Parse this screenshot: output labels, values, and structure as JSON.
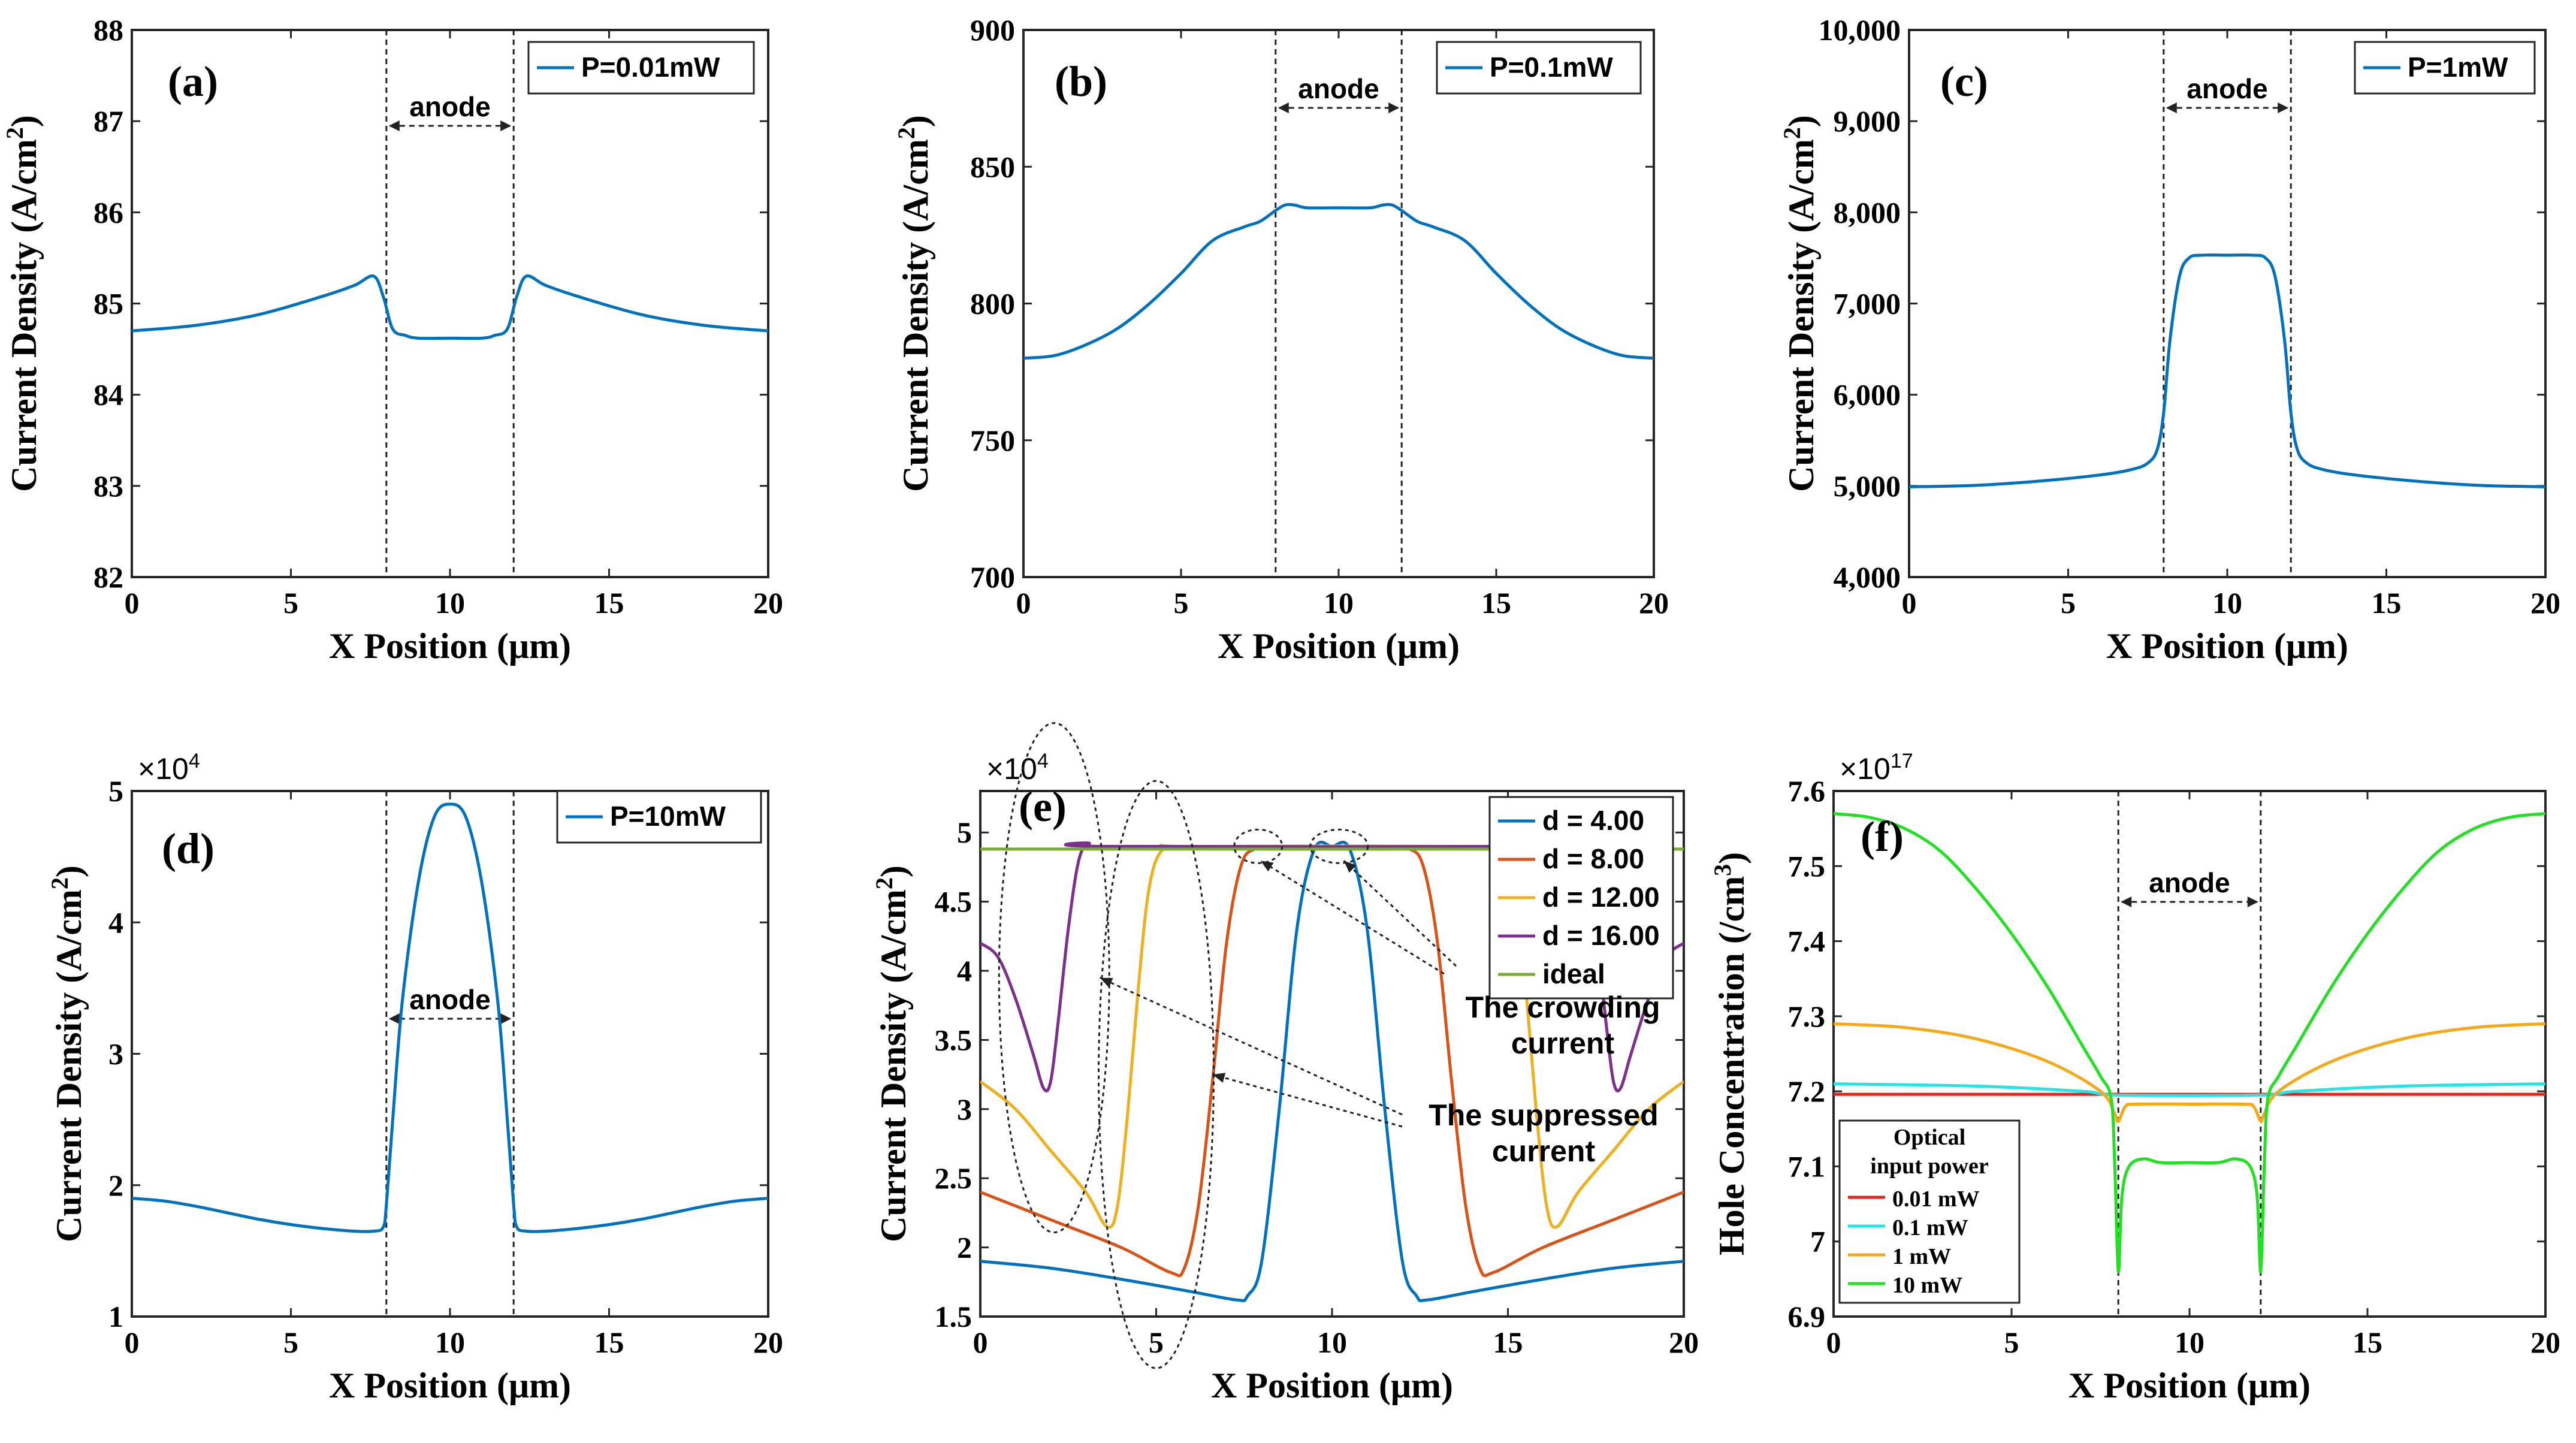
{
  "chart_data": [
    {
      "id": "a",
      "type": "line",
      "panel_label": "(a)",
      "xlabel": "X Position (μm)",
      "ylabel": "Current Density (A/cm",
      "ylabel_sup": "2",
      "ylabel_end": ")",
      "xlim": [
        0,
        20
      ],
      "ylim": [
        82,
        88
      ],
      "xticks": [
        "0",
        "5",
        "10",
        "15",
        "20"
      ],
      "yticks": [
        "82",
        "83",
        "84",
        "85",
        "86",
        "87",
        "88"
      ],
      "multiplier": "",
      "anode": {
        "label": "anode",
        "x1": 8,
        "x2": 12
      },
      "legend": [
        "P=0.01mW"
      ],
      "series": [
        {
          "name": "P=0.01mW",
          "color": "#0072BD",
          "x": [
            0,
            2,
            4,
            6,
            7,
            7.6,
            7.9,
            8.2,
            8.6,
            9,
            10,
            11,
            11.4,
            11.8,
            12.1,
            12.4,
            13,
            14,
            16,
            18,
            20
          ],
          "y": [
            84.7,
            84.76,
            84.88,
            85.08,
            85.2,
            85.3,
            85.08,
            84.72,
            84.65,
            84.62,
            84.62,
            84.62,
            84.65,
            84.72,
            85.08,
            85.3,
            85.2,
            85.08,
            84.88,
            84.76,
            84.7
          ]
        }
      ]
    },
    {
      "id": "b",
      "type": "line",
      "panel_label": "(b)",
      "xlabel": "X Position (μm)",
      "ylabel": "Current Density (A/cm",
      "ylabel_sup": "2",
      "ylabel_end": ")",
      "xlim": [
        0,
        20
      ],
      "ylim": [
        700,
        900
      ],
      "xticks": [
        "0",
        "5",
        "10",
        "15",
        "20"
      ],
      "yticks": [
        "700",
        "750",
        "800",
        "850",
        "900"
      ],
      "multiplier": "",
      "anode": {
        "label": "anode",
        "x1": 8,
        "x2": 12
      },
      "legend": [
        "P=0.1mW"
      ],
      "series": [
        {
          "name": "P=0.1mW",
          "color": "#0072BD",
          "x": [
            0,
            1,
            2,
            3,
            4,
            5,
            6,
            7,
            7.5,
            8,
            8.3,
            8.6,
            9,
            10,
            11,
            11.4,
            11.7,
            12,
            12.5,
            13,
            14,
            15,
            16,
            17,
            18,
            19,
            20
          ],
          "y": [
            780,
            781,
            785,
            791,
            800,
            811,
            823,
            828,
            830,
            834,
            836,
            836,
            835,
            835,
            835,
            836,
            836,
            834,
            830,
            828,
            823,
            811,
            800,
            791,
            785,
            781,
            780
          ]
        }
      ]
    },
    {
      "id": "c",
      "type": "line",
      "panel_label": "(c)",
      "xlabel": "X Position (μm)",
      "ylabel": "Current Density (A/cm",
      "ylabel_sup": "2",
      "ylabel_end": ")",
      "xlim": [
        0,
        20
      ],
      "ylim": [
        4000,
        10000
      ],
      "xticks": [
        "0",
        "5",
        "10",
        "15",
        "20"
      ],
      "yticks": [
        "4,000",
        "5,000",
        "6,000",
        "7,000",
        "8,000",
        "9,000",
        "10,000"
      ],
      "multiplier": "",
      "anode": {
        "label": "anode",
        "x1": 8,
        "x2": 12
      },
      "legend": [
        "P=1mW"
      ],
      "series": [
        {
          "name": "P=1mW",
          "color": "#0072BD",
          "x": [
            0,
            2,
            4,
            6,
            7,
            7.5,
            7.8,
            8,
            8.2,
            8.5,
            8.8,
            9.2,
            10,
            10.8,
            11.2,
            11.5,
            11.8,
            12,
            12.2,
            12.5,
            13,
            14,
            16,
            18,
            20
          ],
          "y": [
            4990,
            5005,
            5050,
            5120,
            5180,
            5250,
            5400,
            5800,
            6600,
            7300,
            7500,
            7530,
            7530,
            7530,
            7500,
            7300,
            6600,
            5800,
            5400,
            5250,
            5180,
            5120,
            5050,
            5005,
            4990
          ]
        }
      ]
    },
    {
      "id": "d",
      "type": "line",
      "panel_label": "(d)",
      "xlabel": "X Position (μm)",
      "ylabel": "Current Density (A/cm",
      "ylabel_sup": "2",
      "ylabel_end": ")",
      "xlim": [
        0,
        20
      ],
      "ylim": [
        1,
        5
      ],
      "xticks": [
        "0",
        "5",
        "10",
        "15",
        "20"
      ],
      "yticks": [
        "1",
        "2",
        "3",
        "4",
        "5"
      ],
      "multiplier": "×10",
      "multiplier_exp": "4",
      "anode": {
        "label": "anode",
        "x1": 8,
        "x2": 12
      },
      "legend": [
        "P=10mW"
      ],
      "series": [
        {
          "name": "P=10mW",
          "color": "#0072BD",
          "x": [
            0,
            1,
            2,
            3,
            4,
            5,
            6,
            7,
            7.6,
            7.9,
            8,
            8.2,
            8.5,
            9,
            9.5,
            10,
            10.5,
            11,
            11.5,
            11.8,
            12,
            12.1,
            12.4,
            13,
            14,
            15,
            16,
            17,
            18,
            19,
            20
          ],
          "y": [
            1.9,
            1.88,
            1.84,
            1.79,
            1.74,
            1.7,
            1.67,
            1.65,
            1.65,
            1.68,
            1.85,
            2.5,
            3.4,
            4.3,
            4.8,
            4.9,
            4.8,
            4.3,
            3.4,
            2.5,
            1.85,
            1.68,
            1.65,
            1.65,
            1.67,
            1.7,
            1.74,
            1.79,
            1.84,
            1.88,
            1.9
          ]
        }
      ]
    },
    {
      "id": "e",
      "type": "line",
      "panel_label": "(e)",
      "xlabel": "X Position (μm)",
      "ylabel": "Current Density (A/cm",
      "ylabel_sup": "2",
      "ylabel_end": ")",
      "xlim": [
        0,
        20
      ],
      "ylim": [
        1.5,
        5.3
      ],
      "xticks": [
        "0",
        "5",
        "10",
        "15",
        "20"
      ],
      "yticks": [
        "1.5",
        "2",
        "2.5",
        "3",
        "3.5",
        "4",
        "4.5",
        "5"
      ],
      "multiplier": "×10",
      "multiplier_exp": "4",
      "legend": [
        "d = 4.00",
        "d = 8.00",
        "d = 12.00",
        "d = 16.00",
        "ideal"
      ],
      "annotations": [
        "The crowding",
        "current",
        "The suppressed",
        "current"
      ],
      "series": [
        {
          "name": "d = 4.00",
          "color": "#0072BD",
          "x": [
            0,
            2,
            4,
            6,
            7.3,
            7.6,
            8,
            8.5,
            9,
            9.5,
            10,
            10.5,
            11,
            11.5,
            12,
            12.4,
            12.7,
            14,
            16,
            18,
            20
          ],
          "y": [
            1.9,
            1.85,
            1.77,
            1.68,
            1.62,
            1.65,
            1.9,
            3.0,
            4.3,
            4.88,
            4.9,
            4.88,
            4.3,
            3.0,
            1.9,
            1.65,
            1.62,
            1.68,
            1.77,
            1.85,
            1.9
          ]
        },
        {
          "name": "d = 8.00",
          "color": "#D95319",
          "x": [
            0,
            2,
            4,
            5.4,
            5.8,
            6.2,
            6.6,
            7,
            7.4,
            7.8,
            8.5,
            11.5,
            12.2,
            12.6,
            13,
            13.4,
            13.8,
            14.2,
            14.6,
            16,
            18,
            20
          ],
          "y": [
            2.4,
            2.2,
            2.0,
            1.82,
            1.85,
            2.3,
            3.2,
            4.2,
            4.75,
            4.88,
            4.88,
            4.88,
            4.88,
            4.75,
            4.2,
            3.2,
            2.3,
            1.85,
            1.82,
            2.0,
            2.2,
            2.4
          ]
        },
        {
          "name": "d = 12.00",
          "color": "#EDB120",
          "x": [
            0,
            1,
            2,
            3,
            3.6,
            3.9,
            4.2,
            4.5,
            4.8,
            5.2,
            6,
            14,
            14.8,
            15.2,
            15.5,
            15.8,
            16.1,
            16.4,
            17,
            18,
            19,
            20
          ],
          "y": [
            3.2,
            3.0,
            2.7,
            2.4,
            2.15,
            2.3,
            3.0,
            3.9,
            4.6,
            4.88,
            4.9,
            4.9,
            4.88,
            4.6,
            3.9,
            3.0,
            2.3,
            2.15,
            2.4,
            2.7,
            3.0,
            3.2
          ]
        },
        {
          "name": "d = 16.00",
          "color": "#7E2F8E",
          "x": [
            0,
            0.5,
            1,
            1.5,
            1.8,
            2,
            2.2,
            2.5,
            2.8,
            3.1,
            3.5,
            16.5,
            16.9,
            17.2,
            17.5,
            17.8,
            18,
            18.2,
            18.5,
            19,
            19.5,
            20
          ],
          "y": [
            4.2,
            4.1,
            3.8,
            3.4,
            3.15,
            3.2,
            3.6,
            4.3,
            4.8,
            4.92,
            4.9,
            4.9,
            4.92,
            4.8,
            4.3,
            3.6,
            3.2,
            3.15,
            3.4,
            3.8,
            4.1,
            4.2
          ]
        },
        {
          "name": "ideal",
          "color": "#77AC30",
          "x": [
            0,
            20
          ],
          "y": [
            4.88,
            4.88
          ]
        }
      ]
    },
    {
      "id": "f",
      "type": "line",
      "panel_label": "(f)",
      "xlabel": "X Position (μm)",
      "ylabel": "Hole Concentration (/cm",
      "ylabel_sup": "3",
      "ylabel_end": ")",
      "xlim": [
        0,
        20
      ],
      "ylim": [
        6.9,
        7.6
      ],
      "xticks": [
        "0",
        "5",
        "10",
        "15",
        "20"
      ],
      "yticks": [
        "6.9",
        "7",
        "7.1",
        "7.2",
        "7.3",
        "7.4",
        "7.5",
        "7.6"
      ],
      "multiplier": "×10",
      "multiplier_exp": "17",
      "anode": {
        "label": "anode",
        "x1": 8,
        "x2": 12
      },
      "legend_title": [
        "Optical",
        "input power"
      ],
      "legend": [
        "0.01 mW",
        "0.1 mW",
        "1 mW",
        "10 mW"
      ],
      "series": [
        {
          "name": "0.01 mW",
          "color": "#E3251E",
          "x": [
            0,
            20
          ],
          "y": [
            7.196,
            7.196
          ]
        },
        {
          "name": "0.1 mW",
          "color": "#22E5E5",
          "x": [
            0,
            4,
            7,
            8,
            12,
            13,
            16,
            20
          ],
          "y": [
            7.21,
            7.207,
            7.2,
            7.195,
            7.195,
            7.2,
            7.207,
            7.21
          ]
        },
        {
          "name": "1 mW",
          "color": "#F6A918",
          "x": [
            0,
            2,
            4,
            6,
            7.5,
            7.9,
            8,
            8.2,
            8.5,
            10,
            11.5,
            11.8,
            12,
            12.1,
            12.5,
            14,
            16,
            18,
            20
          ],
          "y": [
            7.29,
            7.285,
            7.27,
            7.24,
            7.2,
            7.17,
            7.16,
            7.18,
            7.183,
            7.183,
            7.183,
            7.18,
            7.16,
            7.17,
            7.2,
            7.24,
            7.27,
            7.285,
            7.29
          ]
        },
        {
          "name": "10 mW",
          "color": "#22E022",
          "x": [
            0,
            1,
            2,
            3,
            4,
            5,
            6,
            7,
            7.5,
            7.8,
            7.9,
            8,
            8.1,
            8.3,
            8.7,
            9.2,
            10,
            10.8,
            11.3,
            11.7,
            11.9,
            12,
            12.1,
            12.2,
            12.5,
            13,
            14,
            15,
            16,
            17,
            18,
            19,
            20
          ],
          "y": [
            7.57,
            7.565,
            7.55,
            7.52,
            7.47,
            7.41,
            7.34,
            7.26,
            7.22,
            7.19,
            7.1,
            6.96,
            7.06,
            7.1,
            7.11,
            7.105,
            7.105,
            7.105,
            7.11,
            7.1,
            7.06,
            6.96,
            7.1,
            7.19,
            7.22,
            7.26,
            7.34,
            7.41,
            7.47,
            7.52,
            7.55,
            7.565,
            7.57
          ]
        }
      ]
    }
  ]
}
